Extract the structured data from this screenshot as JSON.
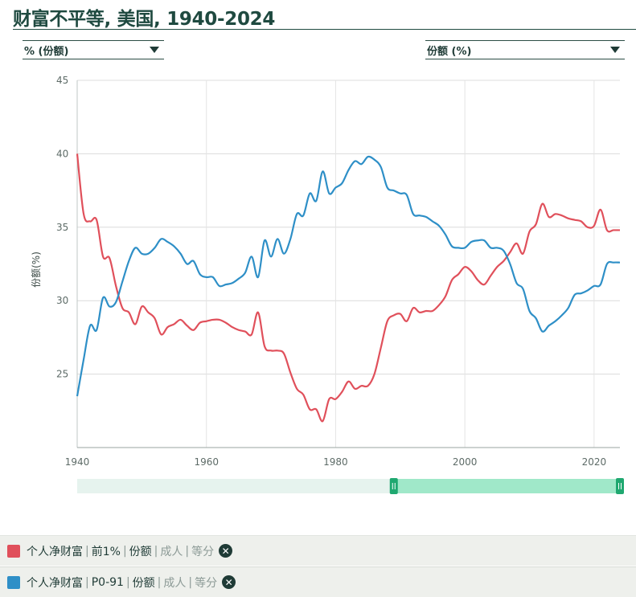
{
  "title": "财富不平等, 美国, 1940-2024",
  "controls": {
    "left_dropdown": "% (份额)",
    "right_dropdown": "份额 (%)"
  },
  "legend": [
    {
      "parts": [
        "个人净财富",
        "前1%",
        "份额"
      ],
      "muted_parts": [
        "成人",
        "等分"
      ],
      "color": "#e0505b"
    },
    {
      "parts": [
        "个人净财富",
        "P0-91",
        "份额"
      ],
      "muted_parts": [
        "成人",
        "等分"
      ],
      "color": "#2e8fc7"
    }
  ],
  "chart_data": {
    "type": "line",
    "title": "财富不平等, 美国, 1940-2024",
    "xlabel": "",
    "ylabel": "份额(%)",
    "xlim": [
      1940,
      2024
    ],
    "ylim": [
      20,
      45
    ],
    "yticks": [
      25,
      30,
      35,
      40,
      45
    ],
    "xticks": [
      1940,
      1960,
      1980,
      2000,
      2020
    ],
    "grid": true,
    "range_slider": [
      1989,
      2024
    ],
    "series": [
      {
        "name": "个人净财富 前1% 份额",
        "color": "#e0505b",
        "x": [
          1940,
          1941,
          1942,
          1943,
          1944,
          1945,
          1946,
          1947,
          1948,
          1949,
          1950,
          1951,
          1952,
          1953,
          1954,
          1955,
          1956,
          1957,
          1958,
          1959,
          1960,
          1961,
          1962,
          1963,
          1964,
          1965,
          1966,
          1967,
          1968,
          1969,
          1970,
          1971,
          1972,
          1973,
          1974,
          1975,
          1976,
          1977,
          1978,
          1979,
          1980,
          1981,
          1982,
          1983,
          1984,
          1985,
          1986,
          1987,
          1988,
          1989,
          1990,
          1991,
          1992,
          1993,
          1994,
          1995,
          1996,
          1997,
          1998,
          1999,
          2000,
          2001,
          2002,
          2003,
          2004,
          2005,
          2006,
          2007,
          2008,
          2009,
          2010,
          2011,
          2012,
          2013,
          2014,
          2015,
          2016,
          2017,
          2018,
          2019,
          2020,
          2021,
          2022,
          2023,
          2024
        ],
        "values": [
          40.0,
          35.9,
          35.4,
          35.5,
          33.0,
          32.9,
          31.0,
          29.5,
          29.2,
          28.4,
          29.6,
          29.2,
          28.8,
          27.7,
          28.2,
          28.4,
          28.7,
          28.3,
          28.0,
          28.5,
          28.6,
          28.7,
          28.7,
          28.5,
          28.2,
          28.0,
          27.9,
          27.7,
          29.2,
          26.9,
          26.6,
          26.6,
          26.4,
          25.1,
          24.0,
          23.6,
          22.6,
          22.6,
          21.8,
          23.3,
          23.3,
          23.8,
          24.5,
          24.0,
          24.2,
          24.2,
          25.0,
          26.8,
          28.6,
          29.0,
          29.1,
          28.6,
          29.5,
          29.2,
          29.3,
          29.3,
          29.7,
          30.3,
          31.4,
          31.8,
          32.3,
          32.0,
          31.4,
          31.1,
          31.7,
          32.3,
          32.7,
          33.3,
          33.9,
          33.2,
          34.7,
          35.2,
          36.6,
          35.7,
          35.9,
          35.8,
          35.6,
          35.5,
          35.4,
          35.0,
          35.1,
          36.2,
          34.8,
          34.8,
          34.8
        ]
      },
      {
        "name": "个人净财富 P0-91 份额",
        "color": "#2e8fc7",
        "x": [
          1940,
          1941,
          1942,
          1943,
          1944,
          1945,
          1946,
          1947,
          1948,
          1949,
          1950,
          1951,
          1952,
          1953,
          1954,
          1955,
          1956,
          1957,
          1958,
          1959,
          1960,
          1961,
          1962,
          1963,
          1964,
          1965,
          1966,
          1967,
          1968,
          1969,
          1970,
          1971,
          1972,
          1973,
          1974,
          1975,
          1976,
          1977,
          1978,
          1979,
          1980,
          1981,
          1982,
          1983,
          1984,
          1985,
          1986,
          1987,
          1988,
          1989,
          1990,
          1991,
          1992,
          1993,
          1994,
          1995,
          1996,
          1997,
          1998,
          1999,
          2000,
          2001,
          2002,
          2003,
          2004,
          2005,
          2006,
          2007,
          2008,
          2009,
          2010,
          2011,
          2012,
          2013,
          2014,
          2015,
          2016,
          2017,
          2018,
          2019,
          2020,
          2021,
          2022,
          2023,
          2024
        ],
        "values": [
          23.5,
          26.0,
          28.3,
          28.0,
          30.2,
          29.6,
          29.9,
          31.3,
          32.7,
          33.6,
          33.2,
          33.2,
          33.6,
          34.2,
          34.0,
          33.7,
          33.2,
          32.5,
          32.7,
          31.8,
          31.6,
          31.6,
          31.0,
          31.1,
          31.2,
          31.5,
          31.9,
          33.0,
          31.6,
          34.1,
          33.0,
          34.2,
          33.2,
          34.2,
          35.9,
          35.8,
          37.3,
          36.8,
          38.8,
          37.3,
          37.7,
          38.0,
          38.9,
          39.5,
          39.3,
          39.8,
          39.6,
          39.1,
          37.7,
          37.5,
          37.3,
          37.2,
          35.9,
          35.8,
          35.7,
          35.4,
          35.1,
          34.5,
          33.7,
          33.6,
          33.6,
          34.0,
          34.1,
          34.1,
          33.6,
          33.6,
          33.4,
          32.5,
          31.2,
          30.8,
          29.3,
          28.8,
          27.9,
          28.3,
          28.6,
          29.0,
          29.5,
          30.4,
          30.5,
          30.7,
          31.0,
          31.1,
          32.5,
          32.6,
          32.6
        ]
      }
    ]
  }
}
